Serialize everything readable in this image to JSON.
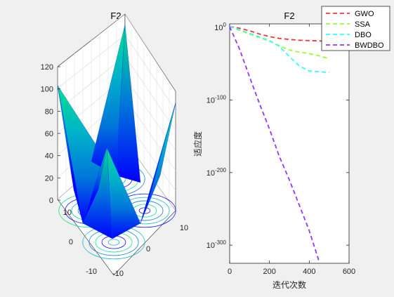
{
  "background": "#f0f0f0",
  "chart_data": [
    {
      "type": "surface",
      "title": "F2",
      "zlim": [
        0,
        120
      ],
      "z_ticks": [
        0,
        20,
        40,
        60,
        80,
        100,
        120
      ],
      "x_ticks": [
        -10,
        0,
        10
      ],
      "y_ticks": [
        -10,
        0,
        10
      ],
      "colormap": [
        "#0000ff",
        "#0077d9",
        "#00b4c8",
        "#00e08a"
      ],
      "description_values": {
        "peak_z": 120,
        "corner_peak_z": 100,
        "center_peak_z": 60
      }
    },
    {
      "type": "line",
      "title": "F2",
      "xlabel": "迭代次数",
      "ylabel": "适应度",
      "xlim": [
        0,
        600
      ],
      "x_ticks": [
        0,
        200,
        400,
        600
      ],
      "y_scale": "log",
      "ylim_exp": [
        -325,
        5
      ],
      "y_ticks": [
        {
          "exp": 0,
          "label_base": "10",
          "label_exp": "0"
        },
        {
          "exp": -100,
          "label_base": "10",
          "label_exp": "-100"
        },
        {
          "exp": -200,
          "label_base": "10",
          "label_exp": "-200"
        },
        {
          "exp": -300,
          "label_base": "10",
          "label_exp": "-300"
        }
      ],
      "legend_position": "top-right",
      "series": [
        {
          "name": "GWO",
          "color": "#ff3333",
          "dash": "dashed",
          "x": [
            0,
            50,
            100,
            150,
            200,
            250,
            300,
            350,
            400,
            450,
            500
          ],
          "log10_y": [
            1.2,
            -1,
            -4.5,
            -9,
            -12.5,
            -15,
            -16.5,
            -17.5,
            -18,
            -18.5,
            -19
          ]
        },
        {
          "name": "SSA",
          "color": "#99ff33",
          "dash": "dashed",
          "x": [
            0,
            50,
            100,
            150,
            200,
            250,
            300,
            350,
            400,
            450,
            500
          ],
          "log10_y": [
            1.2,
            -4,
            -9,
            -14,
            -19,
            -25,
            -31,
            -34,
            -36,
            -39,
            -43
          ]
        },
        {
          "name": "DBO",
          "color": "#33ffff",
          "dash": "dashed",
          "x": [
            0,
            50,
            100,
            150,
            200,
            250,
            300,
            350,
            400,
            450,
            500
          ],
          "log10_y": [
            1.2,
            -3,
            -8,
            -13,
            -18,
            -26,
            -40,
            -53,
            -60,
            -61,
            -62
          ]
        },
        {
          "name": "BWDBO",
          "color": "#9933ff",
          "dash": "dashed",
          "x": [
            0,
            50,
            100,
            150,
            200,
            250,
            300,
            350,
            400,
            450
          ],
          "log10_y": [
            1.2,
            -30,
            -68,
            -105,
            -140,
            -178,
            -210,
            -245,
            -280,
            -323
          ]
        }
      ]
    }
  ]
}
